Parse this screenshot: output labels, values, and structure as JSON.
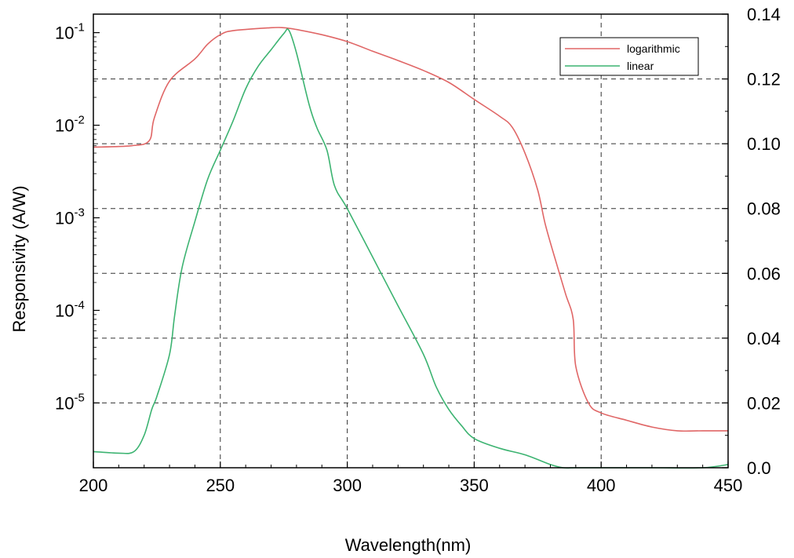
{
  "chart_data": {
    "type": "line",
    "title": "",
    "xlabel": "Wavelength(nm)",
    "ylabel_left": "Responsivity (A/W)",
    "ylabel_right": "",
    "xlim": [
      200,
      450
    ],
    "xticks": [
      200,
      250,
      300,
      350,
      400,
      450
    ],
    "ylim_left_log10": [
      -5.7,
      -0.8
    ],
    "yscale_left": "log",
    "yticks_left": [
      {
        "base": "10",
        "exp": "-1",
        "value": 0.1
      },
      {
        "base": "10",
        "exp": "-2",
        "value": 0.01
      },
      {
        "base": "10",
        "exp": "-3",
        "value": 0.001
      },
      {
        "base": "10",
        "exp": "-4",
        "value": 0.0001
      },
      {
        "base": "10",
        "exp": "-5",
        "value": 1e-05
      }
    ],
    "ylim_right": [
      0.0,
      0.14
    ],
    "yscale_right": "linear",
    "yticks_right": [
      "0.0",
      "0.02",
      "0.04",
      "0.06",
      "0.08",
      "0.10",
      "0.12",
      "0.14"
    ],
    "grid": "dashed, at x ticks and right-axis ticks",
    "legend": {
      "position": "top-right",
      "entries": [
        {
          "label": "logarithmic",
          "color": "#e06666"
        },
        {
          "label": "linear",
          "color": "#3cb371"
        }
      ]
    },
    "series": [
      {
        "name": "logarithmic",
        "axis": "left",
        "color": "#e06666",
        "x": [
          200,
          215,
          222,
          224,
          230,
          240,
          245,
          250,
          255,
          270,
          275,
          280,
          290,
          300,
          310,
          320,
          330,
          340,
          350,
          360,
          365,
          370,
          375,
          378,
          382,
          386,
          389,
          390,
          395,
          400,
          410,
          420,
          430,
          440,
          450
        ],
        "y": [
          0.0058,
          0.006,
          0.0068,
          0.012,
          0.03,
          0.052,
          0.075,
          0.095,
          0.105,
          0.113,
          0.113,
          0.108,
          0.095,
          0.08,
          0.063,
          0.05,
          0.039,
          0.029,
          0.019,
          0.0125,
          0.0095,
          0.005,
          0.002,
          0.00085,
          0.00035,
          0.00015,
          8e-05,
          2.5e-05,
          1e-05,
          7.8e-06,
          6.5e-06,
          5.5e-06,
          5e-06,
          5e-06,
          5e-06
        ]
      },
      {
        "name": "linear",
        "axis": "right",
        "color": "#3cb371",
        "x": [
          200,
          210,
          216,
          220,
          223,
          225,
          230,
          232,
          235,
          240,
          245,
          250,
          255,
          260,
          265,
          270,
          275,
          277,
          280,
          285,
          288,
          292,
          295,
          300,
          310,
          320,
          330,
          335,
          340,
          345,
          350,
          360,
          370,
          380,
          385,
          390,
          400,
          420,
          440,
          450
        ],
        "y": [
          0.005,
          0.0045,
          0.005,
          0.01,
          0.018,
          0.022,
          0.035,
          0.047,
          0.062,
          0.076,
          0.089,
          0.098,
          0.107,
          0.117,
          0.124,
          0.129,
          0.134,
          0.135,
          0.128,
          0.112,
          0.105,
          0.098,
          0.087,
          0.08,
          0.065,
          0.05,
          0.035,
          0.025,
          0.018,
          0.013,
          0.009,
          0.006,
          0.004,
          0.001,
          0.0,
          0.0,
          0.0,
          0.0,
          0.0,
          0.001
        ]
      }
    ]
  }
}
